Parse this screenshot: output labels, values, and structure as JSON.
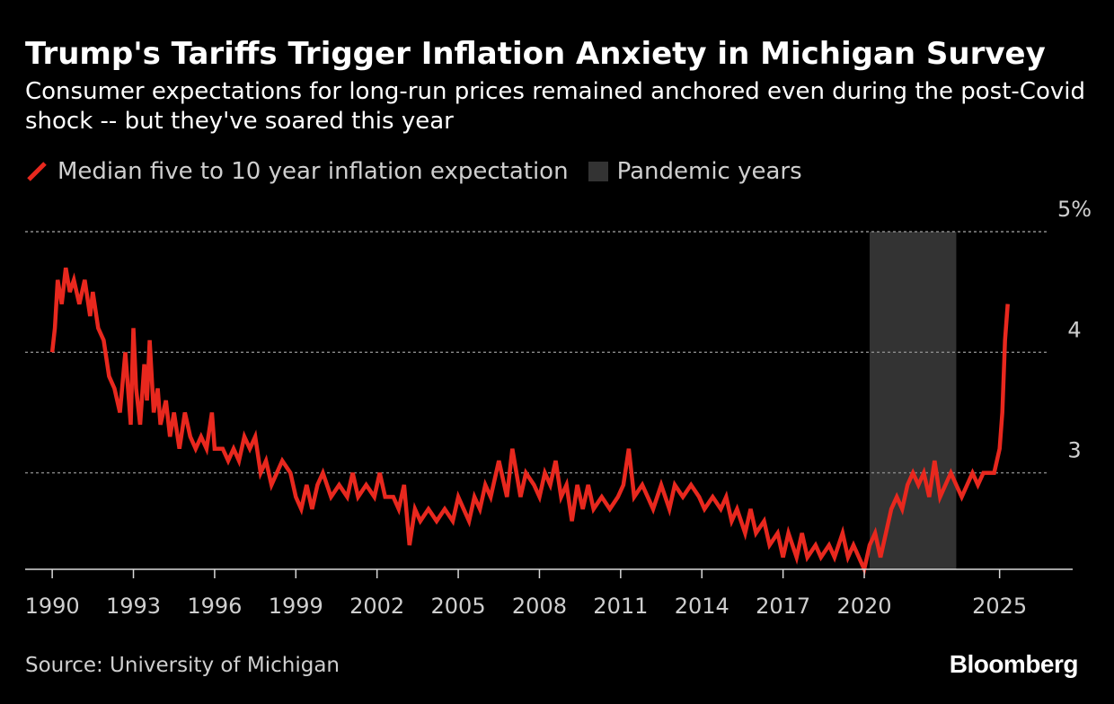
{
  "title": "Trump's Tariffs Trigger Inflation Anxiety in Michigan Survey",
  "subtitle": "Consumer expectations for long-run prices remained anchored even during the post-Covid shock -- but they've soared this year",
  "source": "Source: University of Michigan",
  "brand": "Bloomberg",
  "colors": {
    "line": "#e8281e",
    "pandemic": "#333333",
    "grid": "#8a8a8a",
    "text": "#cfcfcf"
  },
  "legend": {
    "line_label": "Median five to 10 year inflation expectation",
    "band_label": "Pandemic years"
  },
  "chart_data": {
    "type": "line",
    "x_ticks": [
      "1990",
      "1993",
      "1996",
      "1999",
      "2002",
      "2005",
      "2008",
      "2011",
      "2014",
      "2017",
      "2020",
      "2025"
    ],
    "y_ticks": [
      {
        "value": 3,
        "label": "3"
      },
      {
        "value": 4,
        "label": "4"
      },
      {
        "value": 5,
        "label": "5%"
      }
    ],
    "xlim": [
      1989,
      2027.7
    ],
    "ylim": [
      2.2,
      5.0
    ],
    "grid": true,
    "shaded_range": {
      "name": "Pandemic years",
      "start": 2020.2,
      "end": 2023.4
    },
    "series": [
      {
        "name": "Median five to 10 year inflation expectation",
        "points": [
          [
            1990.0,
            4.0
          ],
          [
            1990.1,
            4.2
          ],
          [
            1990.2,
            4.6
          ],
          [
            1990.35,
            4.4
          ],
          [
            1990.5,
            4.7
          ],
          [
            1990.65,
            4.5
          ],
          [
            1990.8,
            4.6
          ],
          [
            1991.0,
            4.4
          ],
          [
            1991.2,
            4.6
          ],
          [
            1991.4,
            4.3
          ],
          [
            1991.5,
            4.5
          ],
          [
            1991.7,
            4.2
          ],
          [
            1991.9,
            4.1
          ],
          [
            1992.1,
            3.8
          ],
          [
            1992.3,
            3.7
          ],
          [
            1992.5,
            3.5
          ],
          [
            1992.7,
            4.0
          ],
          [
            1992.9,
            3.4
          ],
          [
            1993.0,
            4.2
          ],
          [
            1993.1,
            3.7
          ],
          [
            1993.25,
            3.4
          ],
          [
            1993.4,
            3.9
          ],
          [
            1993.5,
            3.6
          ],
          [
            1993.6,
            4.1
          ],
          [
            1993.75,
            3.5
          ],
          [
            1993.9,
            3.7
          ],
          [
            1994.0,
            3.4
          ],
          [
            1994.2,
            3.6
          ],
          [
            1994.35,
            3.3
          ],
          [
            1994.5,
            3.5
          ],
          [
            1994.7,
            3.2
          ],
          [
            1994.9,
            3.5
          ],
          [
            1995.1,
            3.3
          ],
          [
            1995.3,
            3.2
          ],
          [
            1995.5,
            3.3
          ],
          [
            1995.7,
            3.2
          ],
          [
            1995.9,
            3.5
          ],
          [
            1996.0,
            3.2
          ],
          [
            1996.3,
            3.2
          ],
          [
            1996.5,
            3.1
          ],
          [
            1996.7,
            3.2
          ],
          [
            1996.9,
            3.1
          ],
          [
            1997.1,
            3.3
          ],
          [
            1997.3,
            3.2
          ],
          [
            1997.5,
            3.3
          ],
          [
            1997.7,
            3.0
          ],
          [
            1997.9,
            3.1
          ],
          [
            1998.1,
            2.9
          ],
          [
            1998.3,
            3.0
          ],
          [
            1998.5,
            3.1
          ],
          [
            1998.8,
            3.0
          ],
          [
            1999.0,
            2.8
          ],
          [
            1999.2,
            2.7
          ],
          [
            1999.4,
            2.9
          ],
          [
            1999.6,
            2.7
          ],
          [
            1999.8,
            2.9
          ],
          [
            2000.0,
            3.0
          ],
          [
            2000.3,
            2.8
          ],
          [
            2000.6,
            2.9
          ],
          [
            2000.9,
            2.8
          ],
          [
            2001.1,
            3.0
          ],
          [
            2001.3,
            2.8
          ],
          [
            2001.6,
            2.9
          ],
          [
            2001.9,
            2.8
          ],
          [
            2002.1,
            3.0
          ],
          [
            2002.3,
            2.8
          ],
          [
            2002.6,
            2.8
          ],
          [
            2002.8,
            2.7
          ],
          [
            2003.0,
            2.9
          ],
          [
            2003.2,
            2.4
          ],
          [
            2003.4,
            2.7
          ],
          [
            2003.6,
            2.6
          ],
          [
            2003.9,
            2.7
          ],
          [
            2004.2,
            2.6
          ],
          [
            2004.5,
            2.7
          ],
          [
            2004.8,
            2.6
          ],
          [
            2005.0,
            2.8
          ],
          [
            2005.2,
            2.7
          ],
          [
            2005.4,
            2.6
          ],
          [
            2005.6,
            2.8
          ],
          [
            2005.8,
            2.7
          ],
          [
            2006.0,
            2.9
          ],
          [
            2006.2,
            2.8
          ],
          [
            2006.5,
            3.1
          ],
          [
            2006.8,
            2.8
          ],
          [
            2007.0,
            3.2
          ],
          [
            2007.3,
            2.8
          ],
          [
            2007.5,
            3.0
          ],
          [
            2007.8,
            2.9
          ],
          [
            2008.0,
            2.8
          ],
          [
            2008.2,
            3.0
          ],
          [
            2008.4,
            2.9
          ],
          [
            2008.6,
            3.1
          ],
          [
            2008.8,
            2.8
          ],
          [
            2009.0,
            2.9
          ],
          [
            2009.2,
            2.6
          ],
          [
            2009.4,
            2.9
          ],
          [
            2009.6,
            2.7
          ],
          [
            2009.8,
            2.9
          ],
          [
            2010.0,
            2.7
          ],
          [
            2010.3,
            2.8
          ],
          [
            2010.6,
            2.7
          ],
          [
            2010.9,
            2.8
          ],
          [
            2011.1,
            2.9
          ],
          [
            2011.3,
            3.2
          ],
          [
            2011.5,
            2.8
          ],
          [
            2011.8,
            2.9
          ],
          [
            2012.0,
            2.8
          ],
          [
            2012.2,
            2.7
          ],
          [
            2012.5,
            2.9
          ],
          [
            2012.8,
            2.7
          ],
          [
            2013.0,
            2.9
          ],
          [
            2013.3,
            2.8
          ],
          [
            2013.6,
            2.9
          ],
          [
            2013.9,
            2.8
          ],
          [
            2014.1,
            2.7
          ],
          [
            2014.4,
            2.8
          ],
          [
            2014.7,
            2.7
          ],
          [
            2014.9,
            2.8
          ],
          [
            2015.1,
            2.6
          ],
          [
            2015.3,
            2.7
          ],
          [
            2015.6,
            2.5
          ],
          [
            2015.8,
            2.7
          ],
          [
            2016.0,
            2.5
          ],
          [
            2016.3,
            2.6
          ],
          [
            2016.5,
            2.4
          ],
          [
            2016.8,
            2.5
          ],
          [
            2017.0,
            2.3
          ],
          [
            2017.2,
            2.5
          ],
          [
            2017.5,
            2.3
          ],
          [
            2017.7,
            2.5
          ],
          [
            2017.9,
            2.3
          ],
          [
            2018.2,
            2.4
          ],
          [
            2018.4,
            2.3
          ],
          [
            2018.7,
            2.4
          ],
          [
            2018.9,
            2.3
          ],
          [
            2019.2,
            2.5
          ],
          [
            2019.4,
            2.3
          ],
          [
            2019.6,
            2.4
          ],
          [
            2019.8,
            2.3
          ],
          [
            2020.0,
            2.2
          ],
          [
            2020.2,
            2.4
          ],
          [
            2020.4,
            2.5
          ],
          [
            2020.6,
            2.3
          ],
          [
            2020.8,
            2.5
          ],
          [
            2021.0,
            2.7
          ],
          [
            2021.2,
            2.8
          ],
          [
            2021.4,
            2.7
          ],
          [
            2021.6,
            2.9
          ],
          [
            2021.8,
            3.0
          ],
          [
            2022.0,
            2.9
          ],
          [
            2022.2,
            3.0
          ],
          [
            2022.4,
            2.8
          ],
          [
            2022.6,
            3.1
          ],
          [
            2022.8,
            2.8
          ],
          [
            2023.0,
            2.9
          ],
          [
            2023.2,
            3.0
          ],
          [
            2023.4,
            2.9
          ],
          [
            2023.6,
            2.8
          ],
          [
            2023.8,
            2.9
          ],
          [
            2024.0,
            3.0
          ],
          [
            2024.2,
            2.9
          ],
          [
            2024.4,
            3.0
          ],
          [
            2024.6,
            3.0
          ],
          [
            2024.8,
            3.0
          ],
          [
            2025.0,
            3.2
          ],
          [
            2025.1,
            3.5
          ],
          [
            2025.2,
            4.1
          ],
          [
            2025.3,
            4.4
          ]
        ]
      }
    ]
  }
}
